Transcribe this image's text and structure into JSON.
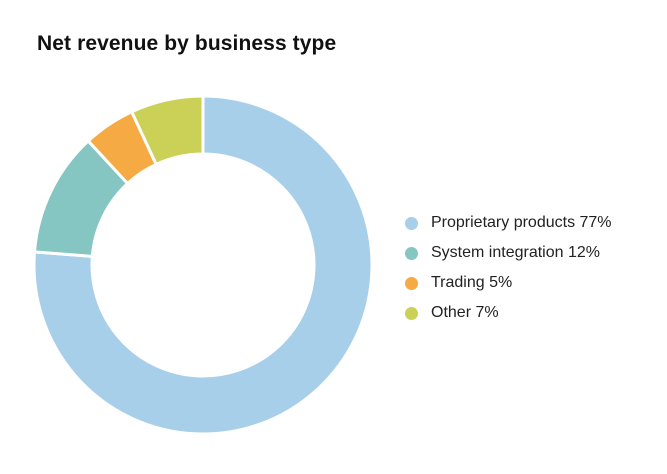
{
  "chart_data": {
    "type": "pie",
    "donut": true,
    "title": "Net revenue by business type",
    "categories": [
      "Proprietary products",
      "System integration",
      "Trading",
      "Other"
    ],
    "values": [
      77,
      12,
      5,
      7
    ],
    "unit": "%",
    "legend_labels": [
      "Proprietary products 77%",
      "System integration 12%",
      "Trading 5%",
      "Other 7%"
    ],
    "colors": [
      "#a8cfea",
      "#85c6c2",
      "#f5aa44",
      "#cbd156"
    ],
    "slice_border_color": "#ffffff",
    "legend_placement": "right",
    "start_angle_deg": 0,
    "direction": "clockwise"
  }
}
